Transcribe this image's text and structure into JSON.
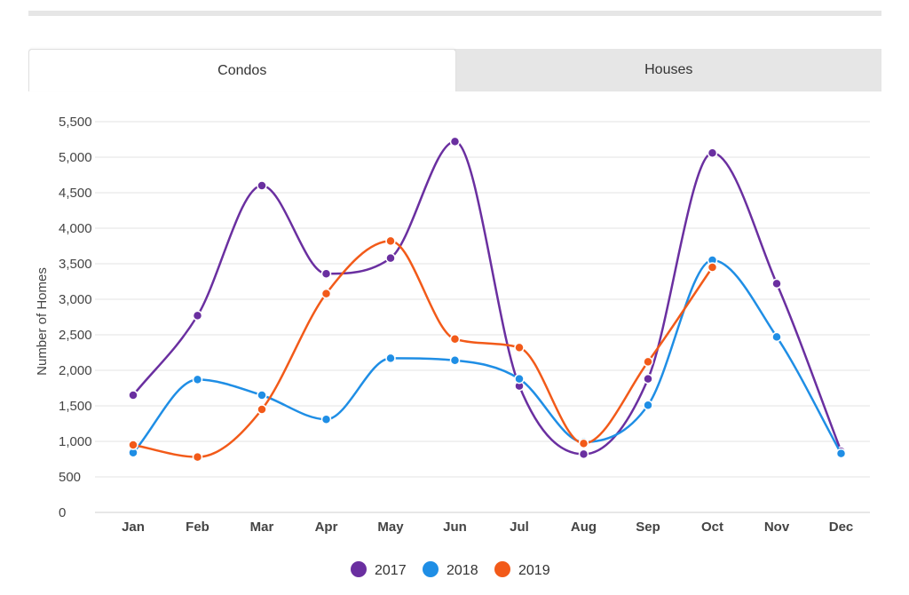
{
  "tabs": [
    {
      "label": "Condos",
      "active": true
    },
    {
      "label": "Houses",
      "active": false
    }
  ],
  "chart_data": {
    "type": "line",
    "title": "",
    "xlabel": "",
    "ylabel": "Number of Homes",
    "categories": [
      "Jan",
      "Feb",
      "Mar",
      "Apr",
      "May",
      "Jun",
      "Jul",
      "Aug",
      "Sep",
      "Oct",
      "Nov",
      "Dec"
    ],
    "ylim": [
      0,
      5500
    ],
    "yticks": [
      0,
      500,
      1000,
      1500,
      2000,
      2500,
      3000,
      3500,
      4000,
      4500,
      5000,
      5500
    ],
    "ytick_labels": [
      "0",
      "500",
      "1,000",
      "1,500",
      "2,000",
      "2,500",
      "3,000",
      "3,500",
      "4,000",
      "4,500",
      "5,000",
      "5,500"
    ],
    "grid": true,
    "legend_position": "bottom-center",
    "series": [
      {
        "name": "2017",
        "color": "#6a2fa0",
        "values": [
          1650,
          2770,
          4600,
          3360,
          3580,
          5220,
          1780,
          820,
          1880,
          5060,
          3220,
          860
        ]
      },
      {
        "name": "2018",
        "color": "#1f8ee5",
        "values": [
          840,
          1870,
          1650,
          1310,
          2170,
          2140,
          1880,
          990,
          1510,
          3550,
          2470,
          830
        ]
      },
      {
        "name": "2019",
        "color": "#f25a19",
        "values": [
          950,
          780,
          1450,
          3080,
          3820,
          2440,
          2320,
          970,
          2120,
          3450,
          null,
          null
        ]
      }
    ]
  }
}
